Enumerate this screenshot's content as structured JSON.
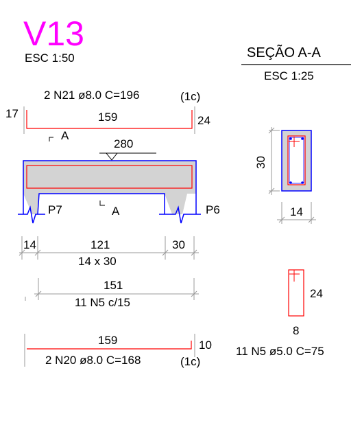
{
  "beam": {
    "title": "V13",
    "scale": "ESC 1:50",
    "top_bar": {
      "label": "2 N21 ø8.0  C=196",
      "suffix": "(1c)",
      "left_hook": "17",
      "length": "159",
      "right_hook": "24"
    },
    "section_mark": "A",
    "section_mark_bottom": "A",
    "load_value": "280",
    "support_left": "P7",
    "support_right": "P6",
    "spans": {
      "left": "14",
      "middle": "121",
      "right": "30"
    },
    "section_size": "14 x 30",
    "stirrup_length": "151",
    "stirrups": "11 N5 c/15",
    "bottom_bar": {
      "length": "159",
      "right_hook": "10",
      "label": "2 N20 ø8.0  C=168",
      "suffix": "(1c)"
    }
  },
  "section": {
    "title": "SEÇÃO A-A",
    "scale": "ESC 1:25",
    "height": "30",
    "width": "14"
  },
  "stirrup_detail": {
    "height": "24",
    "width": "8",
    "label": "11 N5 ø5.0  C=75"
  },
  "colors": {
    "title": "#ff00ff",
    "outline": "#0000ff",
    "rebar": "#ff0000",
    "fill": "#d3d3d3",
    "dimension": "#999999"
  }
}
